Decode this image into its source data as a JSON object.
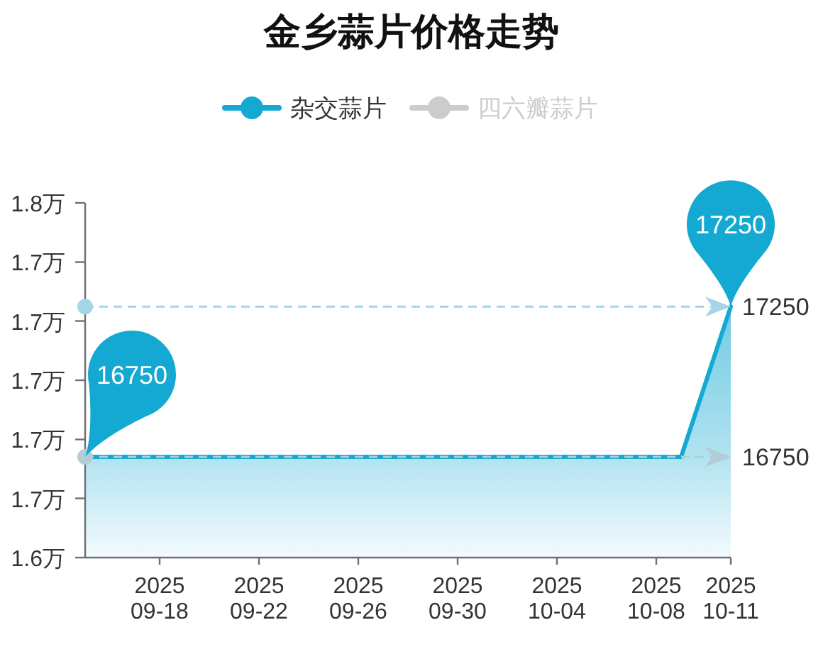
{
  "chart_data": {
    "type": "area",
    "title": "金乡蒜片价格走势",
    "legend": "top",
    "x": [
      "2025-09-15",
      "2025-09-16",
      "2025-09-17",
      "2025-09-18",
      "2025-09-19",
      "2025-09-20",
      "2025-09-21",
      "2025-09-22",
      "2025-09-23",
      "2025-09-24",
      "2025-09-25",
      "2025-09-26",
      "2025-09-27",
      "2025-09-28",
      "2025-09-29",
      "2025-09-30",
      "2025-10-01",
      "2025-10-02",
      "2025-10-03",
      "2025-10-04",
      "2025-10-05",
      "2025-10-06",
      "2025-10-07",
      "2025-10-08",
      "2025-10-09",
      "2025-10-10",
      "2025-10-11"
    ],
    "xlim": [
      "2025-09-15",
      "2025-10-11"
    ],
    "xticks": [
      {
        "value": "2025-09-18",
        "label": "2025\n09-18"
      },
      {
        "value": "2025-09-22",
        "label": "2025\n09-22"
      },
      {
        "value": "2025-09-26",
        "label": "2025\n09-26"
      },
      {
        "value": "2025-09-30",
        "label": "2025\n09-30"
      },
      {
        "value": "2025-10-04",
        "label": "2025\n10-04"
      },
      {
        "value": "2025-10-08",
        "label": "2025\n10-08"
      },
      {
        "value": "2025-10-11",
        "label": "2025\n10-11"
      }
    ],
    "ylim": [
      1.6415,
      1.7595
    ],
    "yticks": [
      {
        "value": 1.6415,
        "label": "1.6万"
      },
      {
        "value": 1.6612,
        "label": "1.7万"
      },
      {
        "value": 1.6808,
        "label": "1.7万"
      },
      {
        "value": 1.7005,
        "label": "1.7万"
      },
      {
        "value": 1.7202,
        "label": "1.7万"
      },
      {
        "value": 1.7398,
        "label": "1.7万"
      },
      {
        "value": 1.7595,
        "label": "1.8万"
      }
    ],
    "series": [
      {
        "name": "杂交蒜片",
        "color": "#14a9d2",
        "values": [
          1.675,
          1.675,
          1.675,
          1.675,
          1.675,
          1.675,
          1.675,
          1.675,
          1.675,
          1.675,
          1.675,
          1.675,
          1.675,
          1.675,
          1.675,
          1.675,
          1.675,
          1.675,
          1.675,
          1.675,
          1.675,
          1.675,
          1.675,
          1.675,
          1.675,
          1.7,
          1.725
        ]
      },
      {
        "name": "四六瓣蒜片",
        "color": "#cccccc",
        "values": [
          null,
          null,
          null,
          null,
          null,
          null,
          null,
          null,
          null,
          null,
          null,
          null,
          null,
          null,
          null,
          null,
          null,
          null,
          null,
          null,
          null,
          null,
          null,
          null,
          null,
          null,
          null
        ]
      }
    ],
    "ref_lines": [
      {
        "axis": "y",
        "value": 1.725,
        "color": "#a3d6e7",
        "line_style": "dashed"
      },
      {
        "axis": "y",
        "value": 1.675,
        "color": "#b3cdd6",
        "line_style": "dashed"
      }
    ],
    "annotations": [
      {
        "text": "17250",
        "x": "2025-10-11",
        "y": 1.725
      },
      {
        "text": "16750",
        "x": "2025-09-15",
        "y": 1.675
      },
      "17250",
      "16750"
    ]
  }
}
